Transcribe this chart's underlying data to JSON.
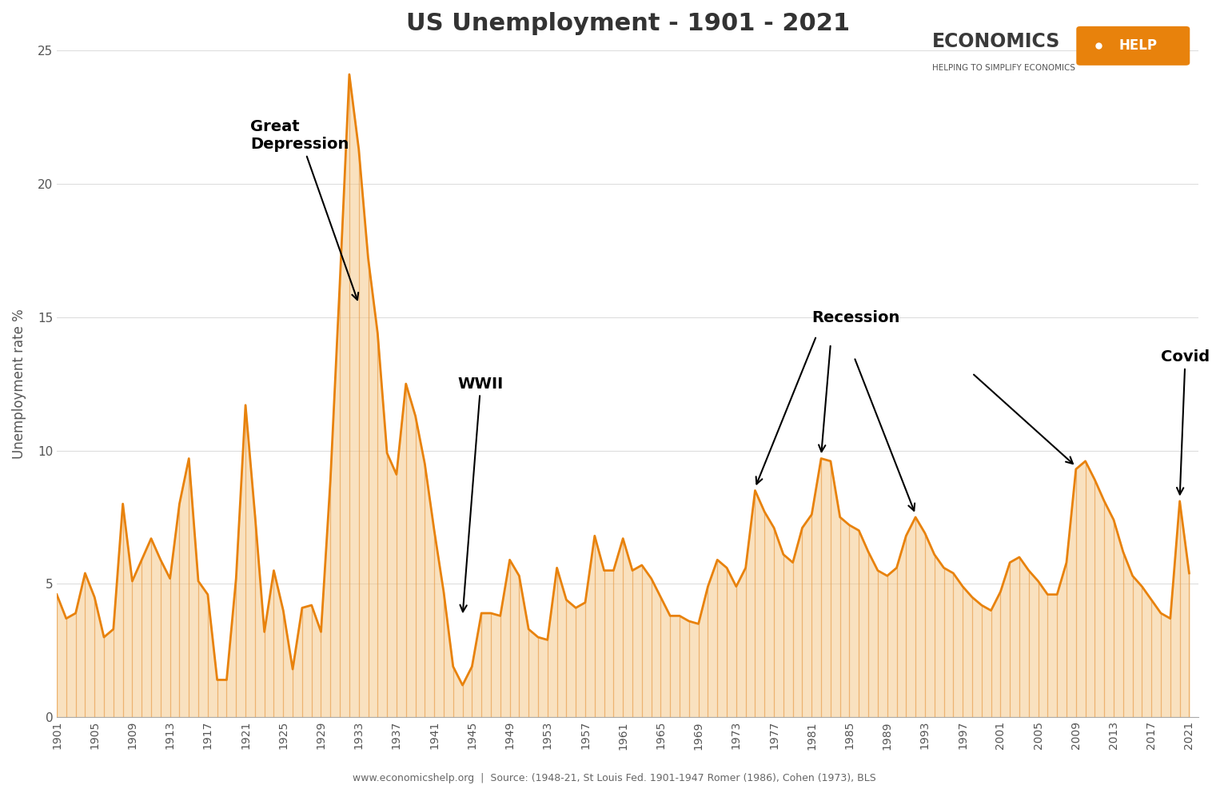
{
  "title": "US Unemployment - 1901 - 2021",
  "ylabel": "Unemployment rate %",
  "source_text": "www.economicshelp.org  |  Source: (1948-21, St Louis Fed. 1901-1947 Romer (1986), Cohen (1973), BLS",
  "line_color": "#E8820C",
  "fill_color": "#F5C480",
  "vline_color": "#E8A050",
  "bg_color": "#FFFFFF",
  "ylim": [
    0,
    25
  ],
  "yticks": [
    0,
    5,
    10,
    15,
    20,
    25
  ],
  "years": [
    1901,
    1902,
    1903,
    1904,
    1905,
    1906,
    1907,
    1908,
    1909,
    1910,
    1911,
    1912,
    1913,
    1914,
    1915,
    1916,
    1917,
    1918,
    1919,
    1920,
    1921,
    1922,
    1923,
    1924,
    1925,
    1926,
    1927,
    1928,
    1929,
    1930,
    1931,
    1932,
    1933,
    1934,
    1935,
    1936,
    1937,
    1938,
    1939,
    1940,
    1941,
    1942,
    1943,
    1944,
    1945,
    1946,
    1947,
    1948,
    1949,
    1950,
    1951,
    1952,
    1953,
    1954,
    1955,
    1956,
    1957,
    1958,
    1959,
    1960,
    1961,
    1962,
    1963,
    1964,
    1965,
    1966,
    1967,
    1968,
    1969,
    1970,
    1971,
    1972,
    1973,
    1974,
    1975,
    1976,
    1977,
    1978,
    1979,
    1980,
    1981,
    1982,
    1983,
    1984,
    1985,
    1986,
    1987,
    1988,
    1989,
    1990,
    1991,
    1992,
    1993,
    1994,
    1995,
    1996,
    1997,
    1998,
    1999,
    2000,
    2001,
    2002,
    2003,
    2004,
    2005,
    2006,
    2007,
    2008,
    2009,
    2010,
    2011,
    2012,
    2013,
    2014,
    2015,
    2016,
    2017,
    2018,
    2019,
    2020,
    2021
  ],
  "values": [
    4.6,
    3.7,
    3.9,
    5.4,
    4.5,
    3.0,
    3.3,
    8.0,
    5.1,
    5.9,
    6.7,
    5.9,
    5.2,
    8.0,
    9.7,
    5.1,
    4.6,
    1.4,
    1.4,
    5.2,
    11.7,
    7.6,
    3.2,
    5.5,
    4.0,
    1.8,
    4.1,
    4.2,
    3.2,
    8.9,
    16.3,
    24.1,
    21.3,
    17.2,
    14.4,
    9.9,
    9.1,
    12.5,
    11.3,
    9.5,
    7.0,
    4.7,
    1.9,
    1.2,
    1.9,
    3.9,
    3.9,
    3.8,
    5.9,
    5.3,
    3.3,
    3.0,
    2.9,
    5.6,
    4.4,
    4.1,
    4.3,
    6.8,
    5.5,
    5.5,
    6.7,
    5.5,
    5.7,
    5.2,
    4.5,
    3.8,
    3.8,
    3.6,
    3.5,
    4.9,
    5.9,
    5.6,
    4.9,
    5.6,
    8.5,
    7.7,
    7.1,
    6.1,
    5.8,
    7.1,
    7.6,
    9.7,
    9.6,
    7.5,
    7.2,
    7.0,
    6.2,
    5.5,
    5.3,
    5.6,
    6.8,
    7.5,
    6.9,
    6.1,
    5.6,
    5.4,
    4.9,
    4.5,
    4.2,
    4.0,
    4.7,
    5.8,
    6.0,
    5.5,
    5.1,
    4.6,
    4.6,
    5.8,
    9.3,
    9.6,
    8.9,
    8.1,
    7.4,
    6.2,
    5.3,
    4.9,
    4.4,
    3.9,
    3.7,
    8.1,
    5.4
  ]
}
